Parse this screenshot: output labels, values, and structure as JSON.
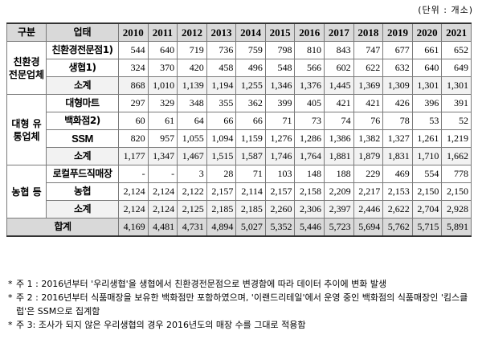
{
  "unit_label": "(단위 : 개소)",
  "headers": [
    "구분",
    "업태",
    "2010",
    "2011",
    "2012",
    "2013",
    "2014",
    "2015",
    "2016",
    "2017",
    "2018",
    "2019",
    "2020",
    "2021"
  ],
  "groups": [
    {
      "category": "친환경 전문업체",
      "rows": [
        {
          "name": "친환경전문점1)",
          "values": [
            "544",
            "640",
            "719",
            "736",
            "759",
            "798",
            "810",
            "843",
            "747",
            "677",
            "661",
            "652"
          ]
        },
        {
          "name": "생협1)",
          "values": [
            "324",
            "370",
            "420",
            "458",
            "496",
            "548",
            "566",
            "602",
            "622",
            "632",
            "640",
            "649"
          ]
        },
        {
          "name": "소계",
          "values": [
            "868",
            "1,010",
            "1,139",
            "1,194",
            "1,255",
            "1,346",
            "1,376",
            "1,445",
            "1,369",
            "1,309",
            "1,301",
            "1,301"
          ]
        }
      ]
    },
    {
      "category": "대형 유통업체",
      "rows": [
        {
          "name": "대형마트",
          "values": [
            "297",
            "329",
            "348",
            "355",
            "362",
            "399",
            "405",
            "421",
            "421",
            "426",
            "396",
            "391"
          ]
        },
        {
          "name": "백화점2)",
          "values": [
            "60",
            "61",
            "64",
            "66",
            "66",
            "71",
            "73",
            "74",
            "76",
            "78",
            "53",
            "52"
          ]
        },
        {
          "name": "SSM",
          "values": [
            "820",
            "957",
            "1,055",
            "1,094",
            "1,159",
            "1,276",
            "1,286",
            "1,386",
            "1,382",
            "1,327",
            "1,261",
            "1,219"
          ]
        },
        {
          "name": "소계",
          "values": [
            "1,177",
            "1,347",
            "1,467",
            "1,515",
            "1,587",
            "1,746",
            "1,764",
            "1,881",
            "1,879",
            "1,831",
            "1,710",
            "1,662"
          ]
        }
      ]
    },
    {
      "category": "농협 등",
      "rows": [
        {
          "name": "로컬푸드직매장",
          "values": [
            "-",
            "-",
            "3",
            "28",
            "71",
            "103",
            "148",
            "188",
            "229",
            "469",
            "554",
            "778"
          ]
        },
        {
          "name": "농협",
          "values": [
            "2,124",
            "2,124",
            "2,122",
            "2,157",
            "2,114",
            "2,157",
            "2,158",
            "2,209",
            "2,217",
            "2,153",
            "2,150",
            "2,150"
          ]
        },
        {
          "name": "소계",
          "values": [
            "2,124",
            "2,124",
            "2,125",
            "2,185",
            "2,185",
            "2,260",
            "2,306",
            "2,397",
            "2,446",
            "2,622",
            "2,704",
            "2,928"
          ]
        }
      ]
    }
  ],
  "total": {
    "name": "합계",
    "values": [
      "4,169",
      "4,481",
      "4,731",
      "4,894",
      "5,027",
      "5,352",
      "5,446",
      "5,723",
      "5,694",
      "5,762",
      "5,715",
      "5,891"
    ]
  },
  "notes": [
    {
      "marker": "*",
      "text": "주 1 : 2016년부터 '우리생협'을 생협에서 친환경전문점으로 변경함에 따라 데이터 추이에 변화 발생"
    },
    {
      "marker": "*",
      "text": "주 2 : 2016년부터 식품매장을 보유한 백화점만 포함하였으며, '이랜드리테일'에서 운영 중인 백화점의 식품매장인 '킴스클럽'은 SSM으로 집계함"
    },
    {
      "marker": "*",
      "text": "주 3: 조사가 되지 않은 우리생협의 경우 2016년도의 매장 수를 그대로 적용함"
    }
  ]
}
